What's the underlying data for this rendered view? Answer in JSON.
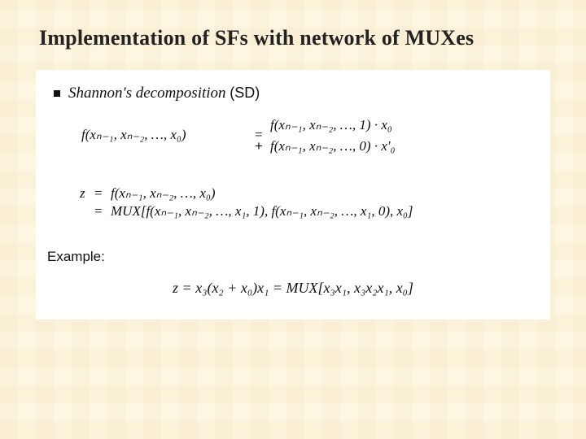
{
  "title": "Implementation of SFs with network of MUXes",
  "bullet": {
    "italic": "Shannon's decomposition",
    "paren": "(SD)"
  },
  "sd": {
    "lhs": "f(xₙ₋₁, xₙ₋₂, …, x₀)",
    "eq": "=",
    "rhs1": "f(xₙ₋₁, xₙ₋₂, …, 1) · x₀",
    "plus": "+",
    "rhs2": "f(xₙ₋₁, xₙ₋₂, …, 0) · x′₀"
  },
  "mux": {
    "z": "z",
    "eq": "=",
    "line1": "f(xₙ₋₁, xₙ₋₂, …, x₀)",
    "line2": "MUX[f(xₙ₋₁, xₙ₋₂, …, x₁, 1),   f(xₙ₋₁, xₙ₋₂, …, x₁, 0),   x₀]"
  },
  "example": {
    "label": "Example:",
    "eq": "z = x₃(x₂ + x₀)x₁ = MUX[x₃x₁,  x₃x₂x₁,  x₀]"
  },
  "style": {
    "bg": "#fdf6e1",
    "panel_bg": "#ffffff",
    "text": "#101010",
    "title_fontsize_pt": 20,
    "body_fontsize_pt": 13,
    "font_serif": "Times New Roman",
    "font_sans": "Arial"
  }
}
